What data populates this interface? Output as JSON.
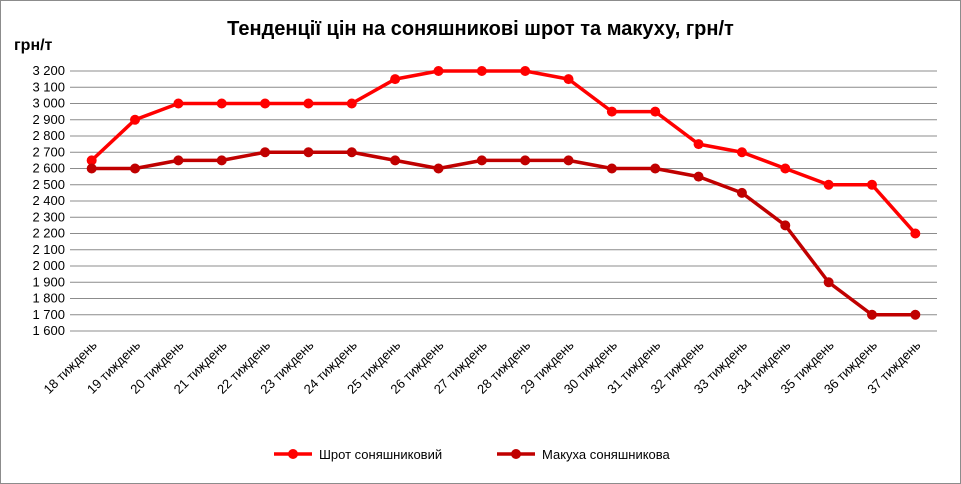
{
  "chart_data": {
    "type": "line",
    "title": "Тенденції цін на соняшникові шрот та макуху, грн/т",
    "ylabel": "грн/т",
    "xlabel": "",
    "ylim": [
      1600,
      3200
    ],
    "ytick_step": 100,
    "yticks": [
      "1 600",
      "1 700",
      "1 800",
      "1 900",
      "2 000",
      "2 100",
      "2 200",
      "2 300",
      "2 400",
      "2 500",
      "2 600",
      "2 700",
      "2 800",
      "2 900",
      "3 000",
      "3 100",
      "3 200"
    ],
    "grid": true,
    "legend": "bottom",
    "categories": [
      "18 тиждень",
      "19 тиждень",
      "20 тиждень",
      "21 тиждень",
      "22 тиждень",
      "23 тиждень",
      "24 тиждень",
      "25 тиждень",
      "26 тиждень",
      "27 тиждень",
      "28 тиждень",
      "29 тиждень",
      "30 тиждень",
      "31 тиждень",
      "32 тиждень",
      "33 тиждень",
      "34 тиждень",
      "35 тиждень",
      "36 тиждень",
      "37 тиждень"
    ],
    "series": [
      {
        "name": "Шрот соняшниковий",
        "color": "#ff0000",
        "values": [
          2650,
          2900,
          3000,
          3000,
          3000,
          3000,
          3000,
          3150,
          3200,
          3200,
          3200,
          3150,
          2950,
          2950,
          2750,
          2700,
          2600,
          2500,
          2500,
          2200
        ]
      },
      {
        "name": "Макуха соняшникова",
        "color": "#c00000",
        "values": [
          2600,
          2600,
          2650,
          2650,
          2700,
          2700,
          2700,
          2650,
          2600,
          2650,
          2650,
          2650,
          2600,
          2600,
          2550,
          2450,
          2250,
          1900,
          1700,
          1700
        ]
      }
    ]
  }
}
